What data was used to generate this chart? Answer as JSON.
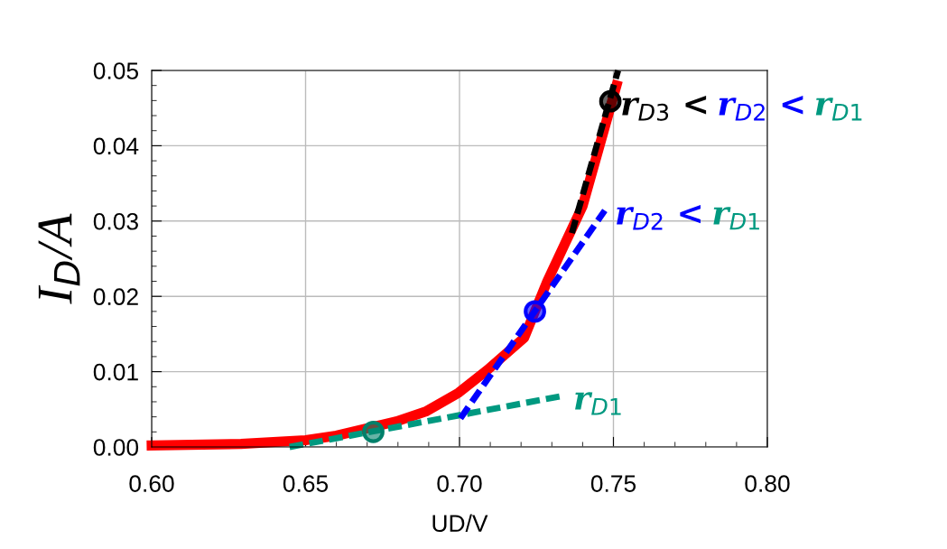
{
  "chart_data": {
    "type": "line",
    "xlabel": "UD/V",
    "ylabel": "I$_{D}$/A",
    "xlim": [
      0.6,
      0.8
    ],
    "ylim": [
      0,
      0.05
    ],
    "xticks": [
      {
        "value": 0.6,
        "label": "0.60"
      },
      {
        "value": 0.65,
        "label": "0.65"
      },
      {
        "value": 0.7,
        "label": "0.70"
      },
      {
        "value": 0.75,
        "label": "0.75"
      },
      {
        "value": 0.8,
        "label": "0.80"
      }
    ],
    "yticks": [
      {
        "value": 0,
        "label": "0.00"
      },
      {
        "value": 0.01,
        "label": "0.01"
      },
      {
        "value": 0.02,
        "label": "0.02"
      },
      {
        "value": 0.03,
        "label": "0.03"
      },
      {
        "value": 0.04,
        "label": "0.04"
      },
      {
        "value": 0.05,
        "label": "0.05"
      }
    ],
    "grid": true,
    "legend": false,
    "series": [
      {
        "color": "#ff0000",
        "line_style": "solid",
        "x": [
          0.6,
          0.629,
          0.65,
          0.66,
          0.6795,
          0.689,
          0.6997,
          0.709,
          0.721,
          0.7285,
          0.74,
          0.751
        ],
        "values": [
          0.0002,
          0.0004,
          0.0009,
          0.0015,
          0.0034,
          0.0047,
          0.0072,
          0.0102,
          0.0145,
          0.022,
          0.032,
          0.048
        ]
      },
      {
        "type": "line",
        "color": "#009980",
        "line_style": "dashed",
        "x": [
          0.6448,
          0.7337
        ],
        "values": [
          0.0,
          0.0068
        ]
      },
      {
        "type": "line",
        "color": "#0000ff",
        "line_style": "dashed",
        "x": [
          0.7003,
          0.7472
        ],
        "values": [
          0.0038,
          0.0314
        ]
      },
      {
        "type": "line",
        "color": "#000000",
        "line_style": "dashed",
        "x": [
          0.7365,
          0.7515
        ],
        "values": [
          0.0284,
          0.05
        ]
      },
      {
        "type": "scatter",
        "color": "#00806a",
        "marker": "circle",
        "x": [
          0.672
        ],
        "values": [
          0.002
        ]
      },
      {
        "type": "scatter",
        "color": "#0000ff",
        "marker": "circle",
        "x": [
          0.7245
        ],
        "values": [
          0.018
        ]
      },
      {
        "type": "scatter",
        "color": "#000000",
        "marker": "circle",
        "x": [
          0.749
        ],
        "values": [
          0.0459
        ]
      }
    ],
    "annotations": [
      {
        "text": "r$_{D1}$",
        "x": 0.7337,
        "y": 0.0068
      },
      {
        "text": "r$_{D2}$ <",
        "x": 0.7472,
        "y": 0.0314
      },
      "r$_{D1}$",
      {
        "text": "r$_{D3}$ <",
        "x": 0.749,
        "y": 0.0459
      },
      "r$_{D2}$ <",
      "r$_{D1}$"
    ]
  }
}
